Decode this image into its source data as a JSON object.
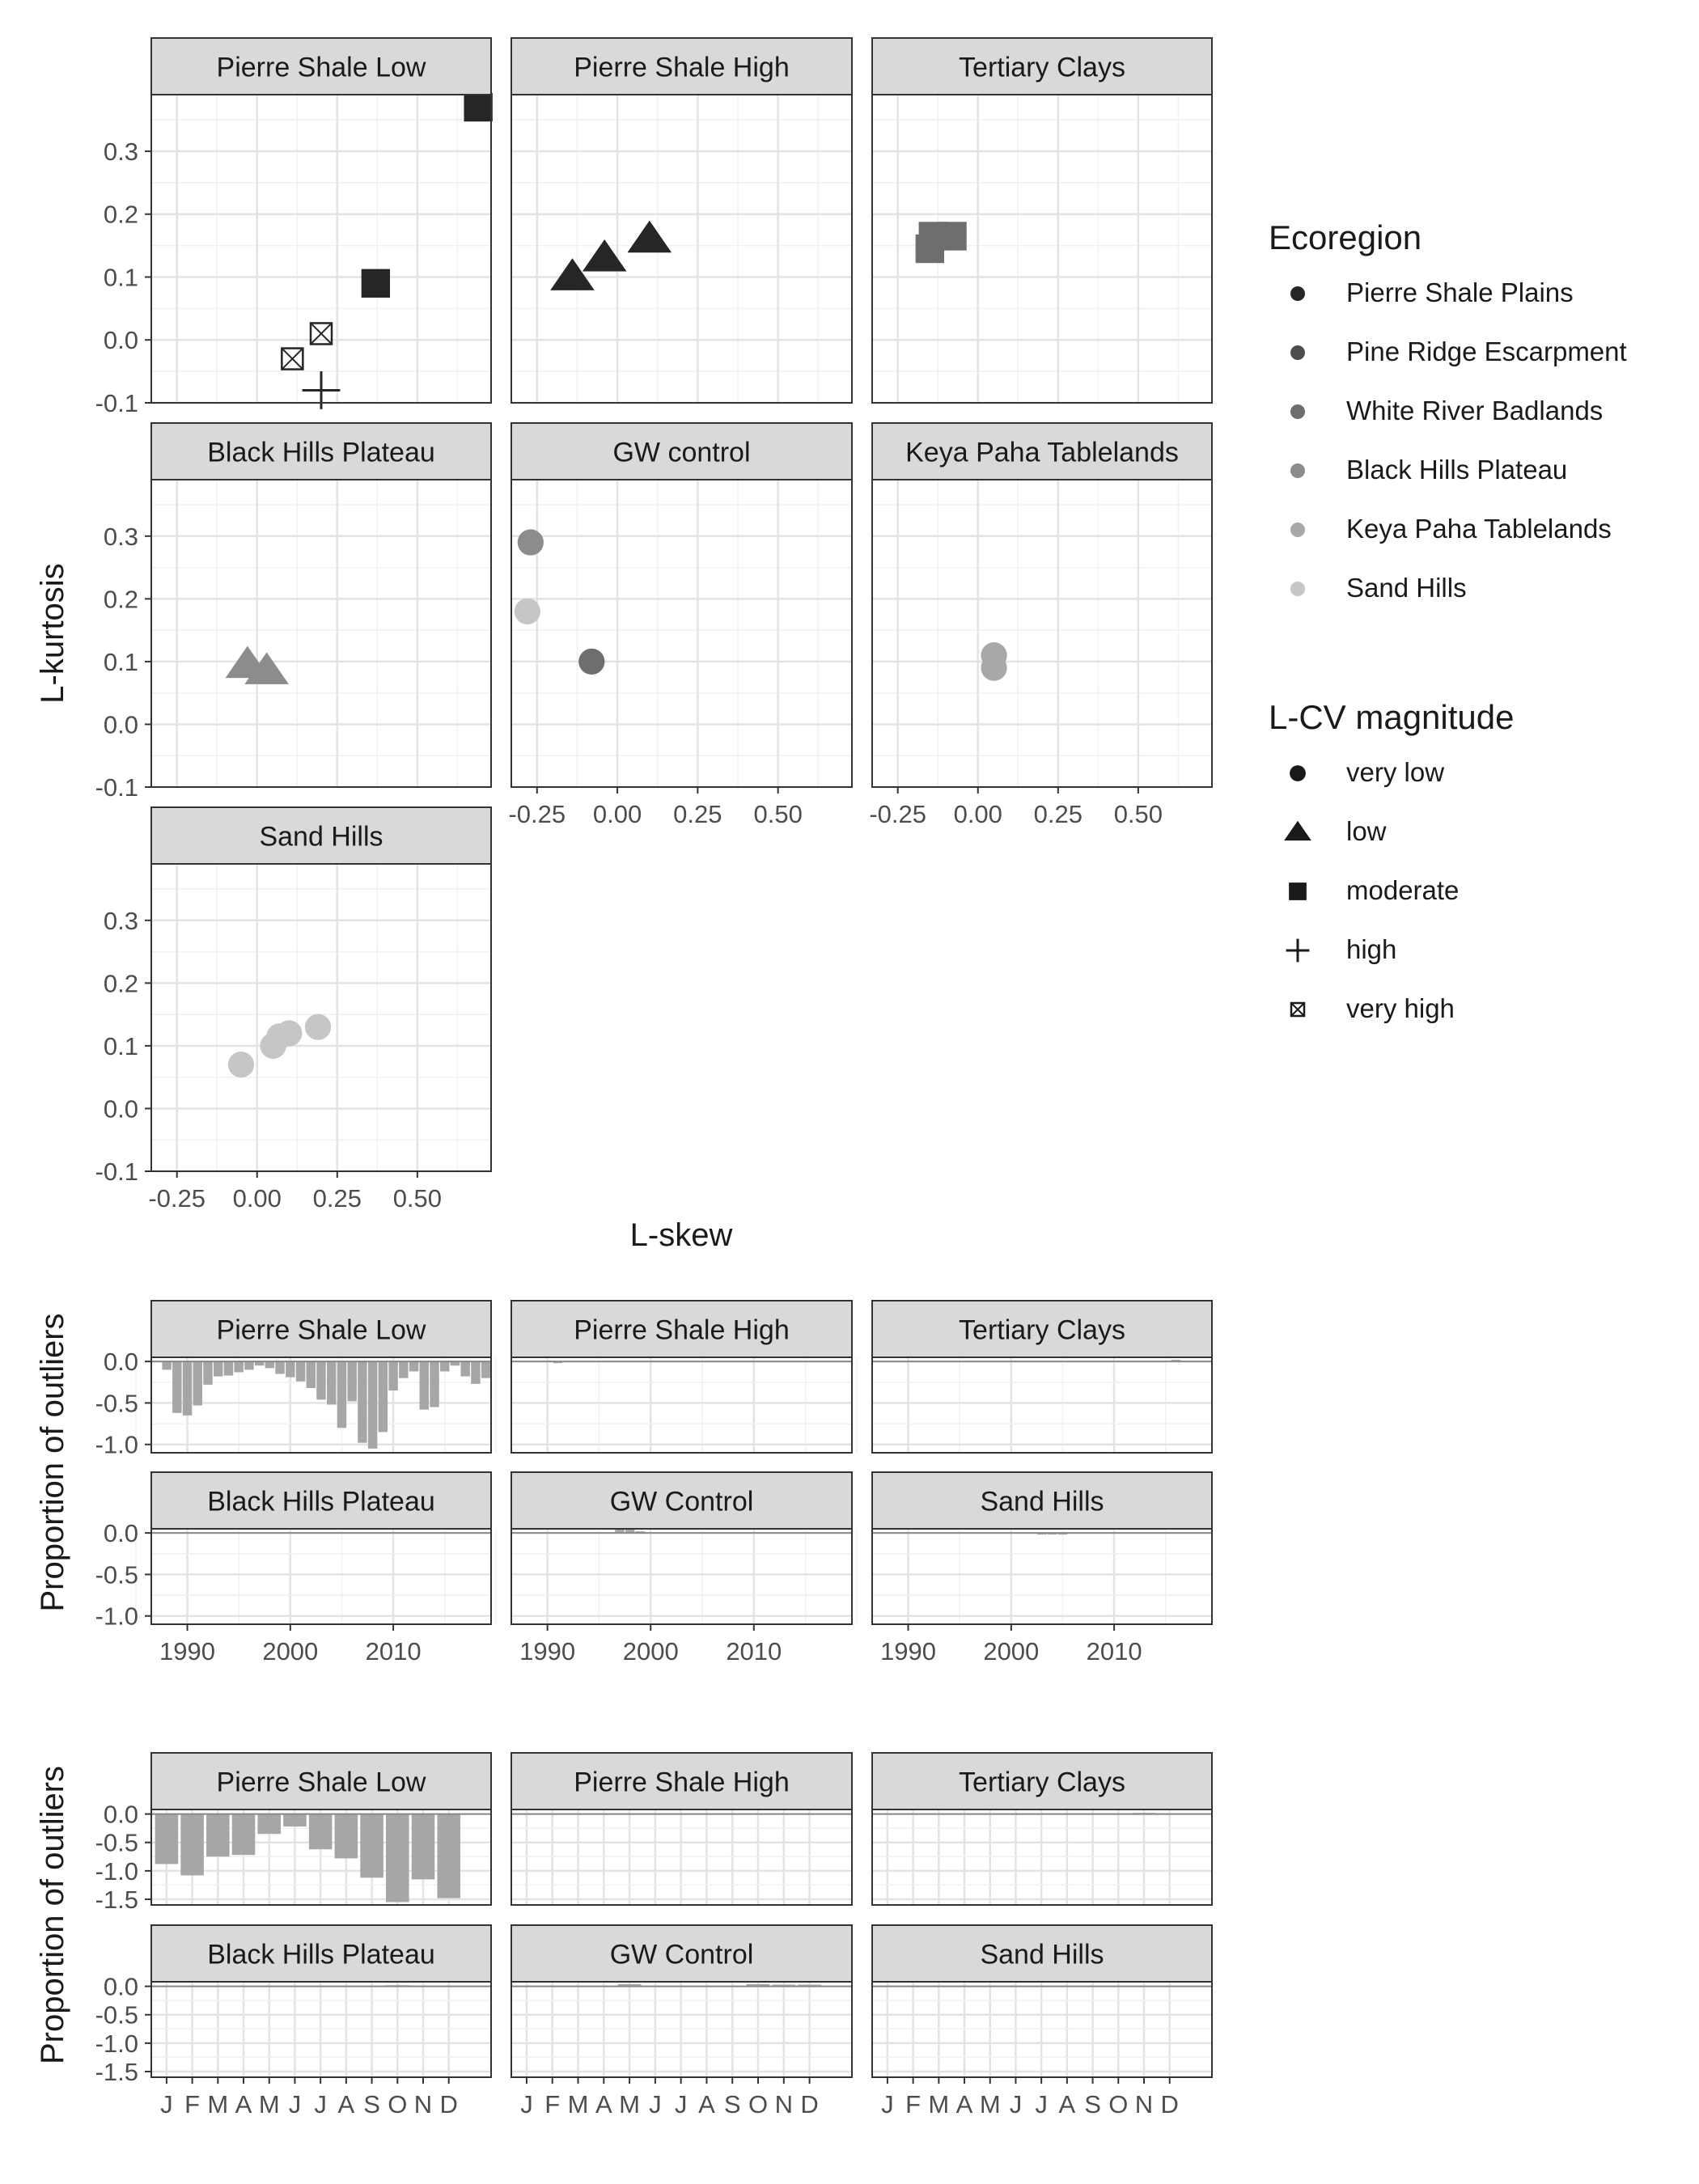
{
  "chart_data": [
    {
      "type": "scatter",
      "xlabel": "L-skew",
      "ylabel": "L-kurtosis",
      "xlim": [
        -0.33,
        0.73
      ],
      "ylim": [
        -0.1,
        0.39
      ],
      "x_ticks": [
        -0.25,
        0.0,
        0.25,
        0.5
      ],
      "x_tick_labels": [
        "-0.25",
        "0.00",
        "0.25",
        "0.50"
      ],
      "y_ticks": [
        -0.1,
        0.0,
        0.1,
        0.2,
        0.3
      ],
      "y_tick_labels": [
        "-0.1",
        "0.0",
        "0.1",
        "0.2",
        "0.3"
      ],
      "grid": true,
      "legend_position": "right",
      "legends": [
        {
          "title": "Ecoregion",
          "entries": [
            {
              "label": "Pierre Shale Plains",
              "color": "#262626"
            },
            {
              "label": "Pine Ridge Escarpment",
              "color": "#4d4d4d"
            },
            {
              "label": "White River Badlands",
              "color": "#6e6e6e"
            },
            {
              "label": "Black Hills Plateau",
              "color": "#8c8c8c"
            },
            {
              "label": "Keya Paha Tablelands",
              "color": "#a8a8a8"
            },
            {
              "label": "Sand Hills",
              "color": "#c6c6c6"
            }
          ]
        },
        {
          "title": "L-CV magnitude",
          "entries": [
            {
              "label": "very low",
              "shape": "circle"
            },
            {
              "label": "low",
              "shape": "triangle"
            },
            {
              "label": "moderate",
              "shape": "square"
            },
            {
              "label": "high",
              "shape": "plus"
            },
            {
              "label": "very high",
              "shape": "boxx"
            }
          ]
        }
      ],
      "panels": [
        {
          "title": "Pierre Shale Low",
          "points": [
            {
              "x": 0.69,
              "y": 0.37,
              "shape": "square",
              "color": "#262626"
            },
            {
              "x": 0.37,
              "y": 0.09,
              "shape": "square",
              "color": "#262626"
            },
            {
              "x": 0.2,
              "y": 0.01,
              "shape": "boxx",
              "color": "#262626"
            },
            {
              "x": 0.11,
              "y": -0.03,
              "shape": "boxx",
              "color": "#262626"
            },
            {
              "x": 0.2,
              "y": -0.08,
              "shape": "plus",
              "color": "#262626"
            }
          ]
        },
        {
          "title": "Pierre Shale High",
          "points": [
            {
              "x": -0.14,
              "y": 0.1,
              "shape": "triangle",
              "color": "#262626"
            },
            {
              "x": -0.04,
              "y": 0.13,
              "shape": "triangle",
              "color": "#262626"
            },
            {
              "x": 0.1,
              "y": 0.16,
              "shape": "triangle",
              "color": "#262626"
            }
          ]
        },
        {
          "title": "Tertiary Clays",
          "points": [
            {
              "x": -0.15,
              "y": 0.145,
              "shape": "square",
              "color": "#6e6e6e"
            },
            {
              "x": -0.14,
              "y": 0.165,
              "shape": "square",
              "color": "#6e6e6e"
            },
            {
              "x": -0.08,
              "y": 0.165,
              "shape": "square",
              "color": "#6e6e6e"
            }
          ]
        },
        {
          "title": "Black Hills Plateau",
          "points": [
            {
              "x": -0.03,
              "y": 0.095,
              "shape": "triangle",
              "color": "#8c8c8c"
            },
            {
              "x": 0.03,
              "y": 0.085,
              "shape": "triangle",
              "color": "#8c8c8c"
            }
          ]
        },
        {
          "title": "GW control",
          "points": [
            {
              "x": -0.27,
              "y": 0.29,
              "shape": "circle",
              "color": "#8c8c8c"
            },
            {
              "x": -0.28,
              "y": 0.18,
              "shape": "circle",
              "color": "#c6c6c6"
            },
            {
              "x": -0.08,
              "y": 0.1,
              "shape": "circle",
              "color": "#6e6e6e"
            }
          ]
        },
        {
          "title": "Keya Paha Tablelands",
          "points": [
            {
              "x": 0.05,
              "y": 0.11,
              "shape": "circle",
              "color": "#a8a8a8"
            },
            {
              "x": 0.05,
              "y": 0.09,
              "shape": "circle",
              "color": "#a8a8a8"
            }
          ]
        },
        {
          "title": "Sand Hills",
          "points": [
            {
              "x": -0.05,
              "y": 0.07,
              "shape": "circle",
              "color": "#c6c6c6"
            },
            {
              "x": 0.05,
              "y": 0.1,
              "shape": "circle",
              "color": "#c6c6c6"
            },
            {
              "x": 0.07,
              "y": 0.115,
              "shape": "circle",
              "color": "#c6c6c6"
            },
            {
              "x": 0.1,
              "y": 0.12,
              "shape": "circle",
              "color": "#c6c6c6"
            },
            {
              "x": 0.19,
              "y": 0.13,
              "shape": "circle",
              "color": "#c6c6c6"
            }
          ]
        }
      ]
    },
    {
      "type": "bar",
      "xlabel": "",
      "ylabel": "Proportion of outliers",
      "xlim": [
        1986.5,
        2019.5
      ],
      "ylim": [
        -1.1,
        0.05
      ],
      "x_ticks": [
        1990,
        2000,
        2010
      ],
      "x_tick_labels": [
        "1990",
        "2000",
        "2010"
      ],
      "y_ticks": [
        0.0,
        -0.5,
        -1.0
      ],
      "y_tick_labels": [
        "0.0",
        "-0.5",
        "-1.0"
      ],
      "grid": true,
      "bar_color": "#a6a6a6",
      "panels": [
        {
          "title": "Pierre Shale Low",
          "x_start": 1988,
          "values": [
            -0.1,
            -0.62,
            -0.65,
            -0.53,
            -0.28,
            -0.18,
            -0.17,
            -0.13,
            -0.1,
            -0.05,
            -0.08,
            -0.15,
            -0.19,
            -0.24,
            -0.32,
            -0.46,
            -0.52,
            -0.8,
            -0.48,
            -0.98,
            -1.05,
            -0.85,
            -0.35,
            -0.2,
            -0.12,
            -0.58,
            -0.55,
            -0.12,
            -0.05,
            -0.18,
            -0.27,
            -0.2
          ]
        },
        {
          "title": "Pierre Shale High",
          "x_start": 1991,
          "values": [
            -0.02
          ]
        },
        {
          "title": "Tertiary Clays",
          "x_start": 2016,
          "values": [
            0.02
          ]
        },
        {
          "title": "Black Hills Plateau",
          "x_start": 1988,
          "values": []
        },
        {
          "title": "GW Control",
          "x_start": 1997,
          "values": [
            0.05,
            0.04,
            0.02
          ]
        },
        {
          "title": "Sand Hills",
          "x_start": 2003,
          "values": [
            -0.01,
            -0.01,
            -0.01
          ]
        }
      ]
    },
    {
      "type": "bar",
      "xlabel": "",
      "ylabel": "Proportion of outliers",
      "ylim": [
        -1.6,
        0.08
      ],
      "categories": [
        "J",
        "F",
        "M",
        "A",
        "M",
        "J",
        "J",
        "A",
        "S",
        "O",
        "N",
        "D"
      ],
      "y_ticks": [
        0.0,
        -0.5,
        -1.0,
        -1.5
      ],
      "y_tick_labels": [
        "0.0",
        "-0.5",
        "-1.0",
        "-1.5"
      ],
      "grid": true,
      "bar_color": "#a6a6a6",
      "panels": [
        {
          "title": "Pierre Shale Low",
          "values": [
            -0.88,
            -1.08,
            -0.75,
            -0.72,
            -0.35,
            -0.22,
            -0.62,
            -0.78,
            -1.12,
            -1.55,
            -1.15,
            -1.48
          ]
        },
        {
          "title": "Pierre Shale High",
          "values": [
            0,
            0,
            0,
            0,
            0,
            0,
            0,
            0,
            0,
            0,
            0,
            0
          ]
        },
        {
          "title": "Tertiary Clays",
          "values": [
            0,
            0,
            0,
            0,
            0,
            0,
            0,
            0,
            0,
            0,
            0.02,
            0
          ]
        },
        {
          "title": "Black Hills Plateau",
          "values": [
            0,
            0,
            0,
            0,
            0,
            0,
            0,
            0,
            0,
            0.02,
            0,
            0
          ]
        },
        {
          "title": "GW Control",
          "values": [
            0,
            0,
            0,
            0,
            0.04,
            0,
            0,
            0,
            0,
            0.04,
            0.03,
            0.03
          ]
        },
        {
          "title": "Sand Hills",
          "values": [
            0,
            0,
            0,
            0,
            0,
            0,
            0,
            0,
            0,
            0,
            0,
            0
          ]
        }
      ]
    }
  ]
}
